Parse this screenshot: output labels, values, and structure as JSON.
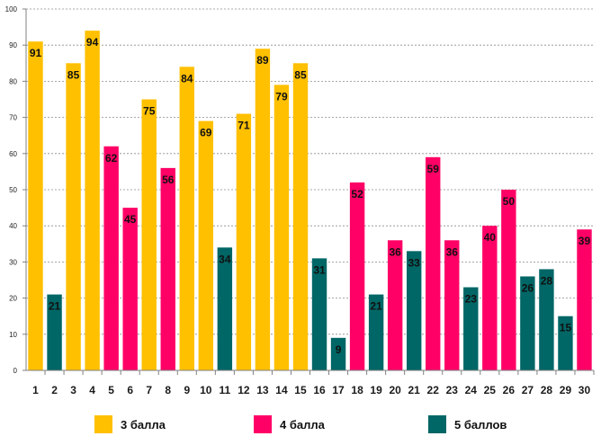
{
  "chart_data": {
    "type": "bar",
    "categories": [
      "1",
      "2",
      "3",
      "4",
      "5",
      "6",
      "7",
      "8",
      "9",
      "10",
      "11",
      "12",
      "13",
      "14",
      "15",
      "16",
      "17",
      "18",
      "19",
      "20",
      "21",
      "22",
      "23",
      "24",
      "25",
      "26",
      "27",
      "28",
      "29",
      "30"
    ],
    "values": [
      91,
      21,
      85,
      94,
      62,
      45,
      75,
      56,
      84,
      69,
      34,
      71,
      89,
      79,
      85,
      31,
      9,
      52,
      21,
      36,
      33,
      59,
      36,
      23,
      40,
      50,
      26,
      28,
      15,
      39
    ],
    "groups": [
      "3 балла",
      "5 баллов",
      "3 балла",
      "3 балла",
      "4 балла",
      "4 балла",
      "3 балла",
      "4 балла",
      "3 балла",
      "3 балла",
      "5 баллов",
      "3 балла",
      "3 балла",
      "3 балла",
      "3 балла",
      "5 баллов",
      "5 баллов",
      "4 балла",
      "5 баллов",
      "4 балла",
      "5 баллов",
      "4 балла",
      "4 балла",
      "5 баллов",
      "4 балла",
      "4 балла",
      "5 баллов",
      "5 баллов",
      "5 баллов",
      "4 балла"
    ],
    "series": [
      {
        "name": "3 балла",
        "color": "#FFC000"
      },
      {
        "name": "4 балла",
        "color": "#FF0066"
      },
      {
        "name": "5 баллов",
        "color": "#006666"
      }
    ],
    "yticks": [
      0,
      10,
      20,
      30,
      40,
      50,
      60,
      70,
      80,
      90,
      100
    ],
    "ylim": [
      0,
      100
    ],
    "grid": true,
    "legend_position": "bottom",
    "title": "",
    "xlabel": "",
    "ylabel": ""
  }
}
